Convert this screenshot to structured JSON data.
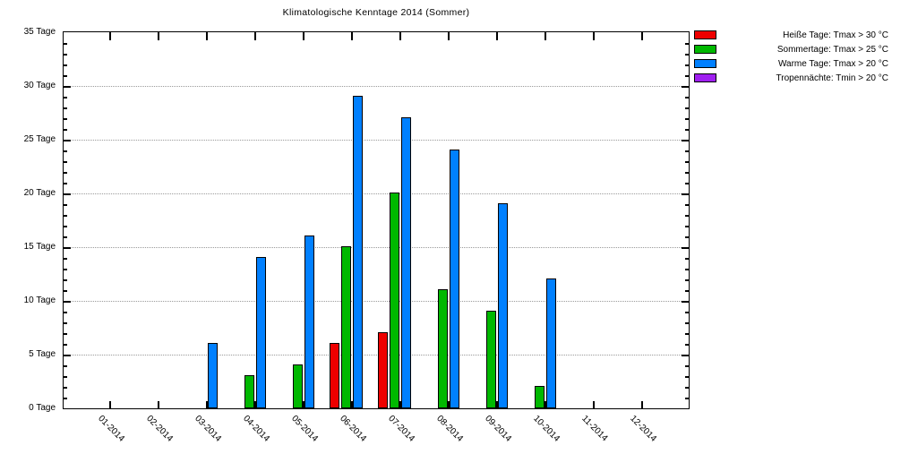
{
  "chart_data": {
    "type": "bar",
    "title": "Klimatologische Kenntage 2014 (Sommer)",
    "categories": [
      "01-2014",
      "02-2014",
      "03-2014",
      "04-2014",
      "05-2014",
      "06-2014",
      "07-2014",
      "08-2014",
      "09-2014",
      "10-2014",
      "11-2014",
      "12-2014"
    ],
    "series": [
      {
        "name": "Heiße Tage: Tmax > 30 °C",
        "color": "#ee0000",
        "values": [
          0,
          0,
          0,
          0,
          0,
          6,
          7,
          0,
          0,
          0,
          0,
          0
        ]
      },
      {
        "name": "Sommertage: Tmax > 25 °C",
        "color": "#00b800",
        "values": [
          0,
          0,
          0,
          3,
          4,
          15,
          20,
          11,
          9,
          2,
          0,
          0
        ]
      },
      {
        "name": "Warme Tage: Tmax > 20 °C",
        "color": "#0080ff",
        "values": [
          0,
          0,
          6,
          14,
          16,
          29,
          27,
          24,
          19,
          12,
          0,
          0
        ]
      },
      {
        "name": "Tropennächte: Tmin > 20 °C",
        "color": "#a020f0",
        "values": [
          0,
          0,
          0,
          0,
          0,
          0,
          0,
          0,
          0,
          0,
          0,
          0
        ]
      }
    ],
    "ylim": [
      0,
      35
    ],
    "ytick_step": 5,
    "ytick_minor_step": 1,
    "ytick_label_suffix": " Tage",
    "xlabel": "",
    "ylabel": "",
    "grid": "horizontal-dotted-at-major-ticks",
    "legend_position": "outside-top-right",
    "plot_border_color": "#000000",
    "grid_color": "#9a9a9a",
    "background_color": "#ffffff"
  }
}
